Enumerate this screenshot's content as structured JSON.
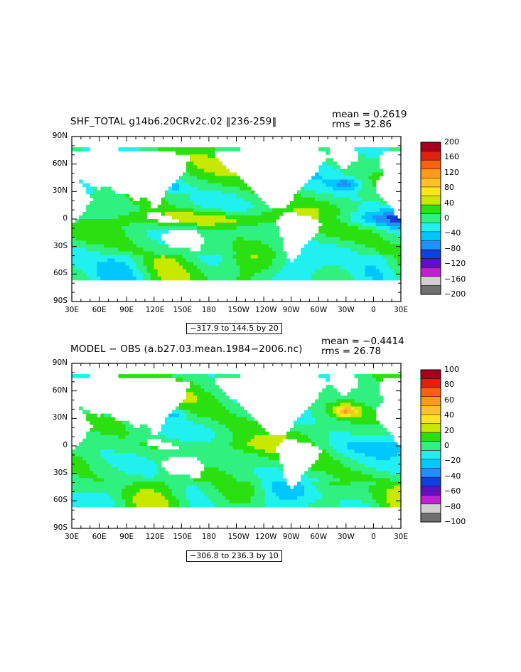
{
  "panels": [
    {
      "title": "SHF_TOTAL g14b6.20CRv2c.02 ‖236-259‖",
      "mean": "mean = 0.2619",
      "rms": "rms = 32.86",
      "range": "−317.9 to 144.5 by 20",
      "lat_labels": [
        "90N",
        "60N",
        "30N",
        "0",
        "30S",
        "60S",
        "90S"
      ],
      "lon_labels": [
        "30E",
        "60E",
        "90E",
        "120E",
        "150E",
        "180",
        "150W",
        "120W",
        "90W",
        "60W",
        "30W",
        "0",
        "30E"
      ],
      "colorbar_labels": [
        "200",
        "160",
        "120",
        "80",
        "40",
        "0",
        "−40",
        "−80",
        "−120",
        "−160",
        "−200"
      ],
      "colorbar_colors": [
        "#a8001c",
        "#e02010",
        "#ff6010",
        "#ff9a18",
        "#ffc030",
        "#ffe420",
        "#c8e800",
        "#2ae010",
        "#30f080",
        "#20f0f0",
        "#00c8ff",
        "#2090ff",
        "#1040e0",
        "#6010c0",
        "#c020d0",
        "#d0d0d0",
        "#707070"
      ]
    },
    {
      "title": "MODEL − OBS (a.b27.03.mean.1984−2006.nc)",
      "mean": "mean = −0.4414",
      "rms": "rms = 26.78",
      "range": "−306.8 to 236.3 by 10",
      "lat_labels": [
        "90N",
        "60N",
        "30N",
        "0",
        "30S",
        "60S",
        "90S"
      ],
      "lon_labels": [
        "30E",
        "60E",
        "90E",
        "120E",
        "150E",
        "180",
        "150W",
        "120W",
        "90W",
        "60W",
        "30W",
        "0",
        "30E"
      ],
      "colorbar_labels": [
        "100",
        "80",
        "60",
        "40",
        "20",
        "0",
        "−20",
        "−40",
        "−60",
        "−80",
        "−100"
      ],
      "colorbar_colors": [
        "#a8001c",
        "#e02010",
        "#ff6010",
        "#ff9a18",
        "#ffc030",
        "#ffe420",
        "#c8e800",
        "#2ae010",
        "#30f080",
        "#20f0f0",
        "#00c8ff",
        "#2090ff",
        "#1040e0",
        "#6010c0",
        "#c020d0",
        "#d0d0d0",
        "#707070"
      ]
    }
  ]
}
